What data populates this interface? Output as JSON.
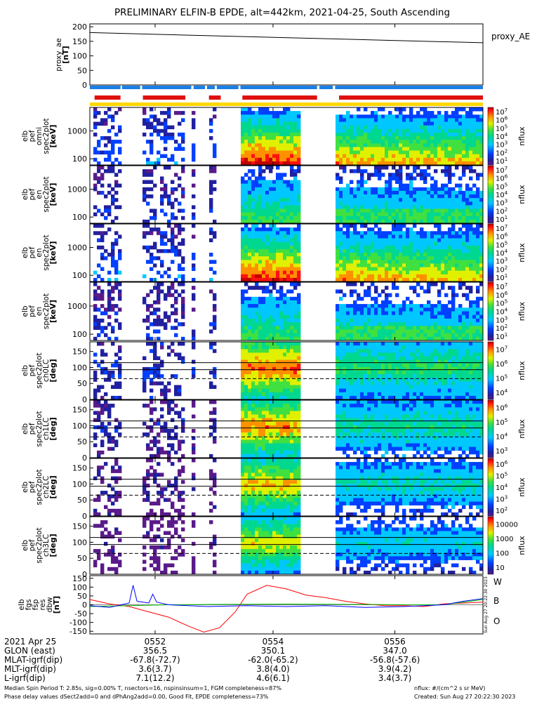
{
  "title": "PRELIMINARY ELFIN-B EPDE, alt=442km, 2021-04-25, South Ascending",
  "colors": {
    "bar_blue": "#1a7fe6",
    "bar_red": "#e01010",
    "bar_yellow": "#ffd700",
    "line_red": "#ff0000",
    "line_green": "#00bb00",
    "line_blue": "#0000ff"
  },
  "chart_data": [
    {
      "type": "line",
      "panel": "proxy_ae",
      "ylabel": "proxy_ae\n[nT]",
      "legend": "proxy_AE",
      "ylim": [
        0,
        210
      ],
      "yticks": [
        "0",
        "50",
        "100",
        "150",
        "200"
      ],
      "x": [
        "05:51:00",
        "05:57:50"
      ],
      "values": [
        180,
        145
      ]
    },
    {
      "type": "table",
      "panel": "status bars",
      "rows": [
        {
          "name": "blue",
          "color": "#1a7fe6",
          "segments": [
            [
              0,
              0.078
            ],
            [
              0.082,
              0.128
            ],
            [
              0.133,
              0.258
            ],
            [
              0.264,
              0.293
            ],
            [
              0.298,
              0.318
            ],
            [
              0.323,
              0.378
            ],
            [
              0.383,
              0.578
            ],
            [
              0.584,
              0.618
            ],
            [
              0.624,
              1.0
            ]
          ]
        },
        {
          "name": "red",
          "color": "#e01010",
          "segments": [
            [
              0.012,
              0.078
            ],
            [
              0.135,
              0.243
            ],
            [
              0.303,
              0.333
            ],
            [
              0.388,
              0.578
            ],
            [
              0.634,
              1.0
            ]
          ]
        },
        {
          "name": "yellow",
          "color": "#ffd700",
          "segments": [
            [
              0,
              1.0
            ]
          ]
        }
      ]
    },
    {
      "type": "heatmap",
      "panel": "omni",
      "ylabel": "elb\npef\nomni\nspec2plot\n[keV]",
      "ylim": [
        60,
        7000
      ],
      "ytick_labels": [
        "100",
        "1000"
      ],
      "colorbar": {
        "label": "nflux",
        "range": [
          10,
          10000000
        ],
        "tick_labels": [
          "10^1",
          "10^2",
          "10^3",
          "10^4",
          "10^5",
          "10^6",
          "10^7"
        ]
      }
    },
    {
      "type": "heatmap",
      "panel": "anti",
      "ylabel": "elb\npef\nen\nspec2plot\n[keV]",
      "ylim": [
        60,
        7000
      ],
      "ytick_labels": [
        "100",
        "1000"
      ],
      "colorbar": {
        "label": "nflux",
        "range": [
          10,
          10000000
        ],
        "tick_labels": [
          "10^1",
          "10^2",
          "10^3",
          "10^4",
          "10^5",
          "10^6",
          "10^7"
        ]
      }
    },
    {
      "type": "heatmap",
      "panel": "perp",
      "ylabel": "elb\npef\nen\nspec2plot\n[keV]",
      "ylim": [
        60,
        7000
      ],
      "ytick_labels": [
        "100",
        "1000"
      ],
      "colorbar": {
        "label": "nflux",
        "range": [
          10,
          10000000
        ],
        "tick_labels": [
          "10^1",
          "10^2",
          "10^3",
          "10^4",
          "10^5",
          "10^6",
          "10^7"
        ]
      }
    },
    {
      "type": "heatmap",
      "panel": "para",
      "ylabel": "elb\npef\nen\nspec2plot\n[keV]",
      "ylim": [
        60,
        7000
      ],
      "ytick_labels": [
        "100",
        "1000"
      ],
      "colorbar": {
        "label": "nflux",
        "range": [
          10,
          10000000
        ],
        "tick_labels": [
          "10^1",
          "10^2",
          "10^3",
          "10^4",
          "10^5",
          "10^6",
          "10^7"
        ]
      }
    },
    {
      "type": "heatmap",
      "panel": "ch0LC",
      "ylabel": "elb\npef\nspec2plot\nch0LC\n[deg]",
      "ylim": [
        0,
        180
      ],
      "yticks": [
        "0",
        "50",
        "100",
        "150"
      ],
      "lines_solid": [
        93,
        115
      ],
      "line_dashed": 65,
      "colorbar": {
        "label": "nflux",
        "range": [
          3000,
          10000000
        ],
        "tick_labels": [
          "10^4",
          "10^5",
          "10^6",
          "10^7"
        ]
      }
    },
    {
      "type": "heatmap",
      "panel": "ch1LC",
      "ylabel": "elb\npef\nspec2plot\nch1LC\n[deg]",
      "ylim": [
        0,
        180
      ],
      "yticks": [
        "0",
        "50",
        "100",
        "150"
      ],
      "lines_solid": [
        93,
        115
      ],
      "line_dashed": 65,
      "colorbar": {
        "label": "nflux",
        "range": [
          1000,
          3000000
        ],
        "tick_labels": [
          "10^3",
          "10^4",
          "10^5",
          "10^6"
        ]
      }
    },
    {
      "type": "heatmap",
      "panel": "ch2LC",
      "ylabel": "elb\npef\nspec2plot\nch2LC\n[deg]",
      "ylim": [
        0,
        180
      ],
      "yticks": [
        "0",
        "50",
        "100",
        "150"
      ],
      "lines_solid": [
        93,
        115
      ],
      "line_dashed": 65,
      "colorbar": {
        "label": "nflux",
        "range": [
          100,
          3000000
        ],
        "tick_labels": [
          "10^2",
          "10^3",
          "10^4",
          "10^5",
          "10^6"
        ]
      }
    },
    {
      "type": "heatmap",
      "panel": "ch3LC",
      "ylabel": "elb\npef\nspec2plot\nch3LC\n[deg]",
      "ylim": [
        0,
        180
      ],
      "yticks": [
        "0",
        "50",
        "100",
        "150"
      ],
      "lines_solid": [
        93,
        115
      ],
      "line_dashed": 65,
      "colorbar": {
        "label": "nflux",
        "range": [
          10,
          10000
        ],
        "tick_labels": [
          "10",
          "100",
          "1000",
          "10000"
        ]
      }
    },
    {
      "type": "line",
      "panel": "fgs",
      "ylabel": "elb\nfgs\nfsp\nres\ndbw\n[nT]",
      "ylim": [
        -165,
        165
      ],
      "yticks": [
        "-150",
        "-100",
        "-50",
        "0",
        "50",
        "100",
        "150"
      ],
      "series": [
        {
          "name": "W",
          "color": "#ff0000",
          "x": [
            0,
            0.05,
            0.1,
            0.15,
            0.2,
            0.25,
            0.29,
            0.33,
            0.37,
            0.4,
            0.45,
            0.5,
            0.55,
            0.6,
            0.65,
            0.7,
            0.75,
            0.8,
            0.85,
            0.9,
            0.95,
            1.0
          ],
          "values": [
            30,
            5,
            -10,
            -40,
            -70,
            -120,
            -155,
            -130,
            -40,
            60,
            110,
            90,
            55,
            40,
            20,
            5,
            -5,
            -5,
            -10,
            5,
            10,
            15
          ]
        },
        {
          "name": "B",
          "color": "#00bb00",
          "x": [
            0,
            0.1,
            0.2,
            0.3,
            0.4,
            0.5,
            0.6,
            0.7,
            0.8,
            0.9,
            0.95,
            1.0
          ],
          "values": [
            -10,
            -5,
            0,
            2,
            3,
            4,
            3,
            2,
            0,
            0,
            15,
            30
          ]
        },
        {
          "name": "O",
          "color": "#0000ff",
          "x": [
            0,
            0.05,
            0.1,
            0.11,
            0.12,
            0.15,
            0.16,
            0.17,
            0.2,
            0.25,
            0.3,
            0.4,
            0.5,
            0.6,
            0.7,
            0.8,
            0.9,
            0.95,
            1.0
          ],
          "values": [
            -5,
            -15,
            10,
            110,
            20,
            10,
            60,
            15,
            0,
            -5,
            -10,
            -5,
            -10,
            -5,
            -15,
            -10,
            0,
            20,
            35
          ]
        }
      ],
      "side_text": "Sun Aug 27 20:22:30 2023"
    }
  ],
  "axis": {
    "rows": [
      {
        "label": "2021 Apr 25",
        "vals": [
          "0552",
          "0554",
          "0556"
        ]
      },
      {
        "label": "GLON (east)",
        "vals": [
          "356.5",
          "350.1",
          "347.0"
        ]
      },
      {
        "label": "MLAT-igrf(dip)",
        "vals": [
          "-67.8(-72.7)",
          "-62.0(-65.2)",
          "-56.8(-57.6)"
        ]
      },
      {
        "label": "MLT-igrf(dip)",
        "vals": [
          "3.6(3.7)",
          "3.8(4.0)",
          "3.9(4.2)"
        ]
      },
      {
        "label": "L-igrf(dip)",
        "vals": [
          "7.1(12.2)",
          "4.6(6.1)",
          "3.4(3.7)"
        ]
      }
    ]
  },
  "footer": {
    "line1": "Median Spin Period T: 2.85s, sig=0.00% T, nsectors=16, nspinsinsum=1, FGM completeness=87%",
    "line2": "Phase delay values dSect2add=0 and dPhAng2add=0.00, Good Fit, EPDE completeness=73%",
    "units": "nflux: #/(cm^2 s sr MeV)",
    "created": "Created: Sun Aug 27 20:22:30 2023"
  }
}
